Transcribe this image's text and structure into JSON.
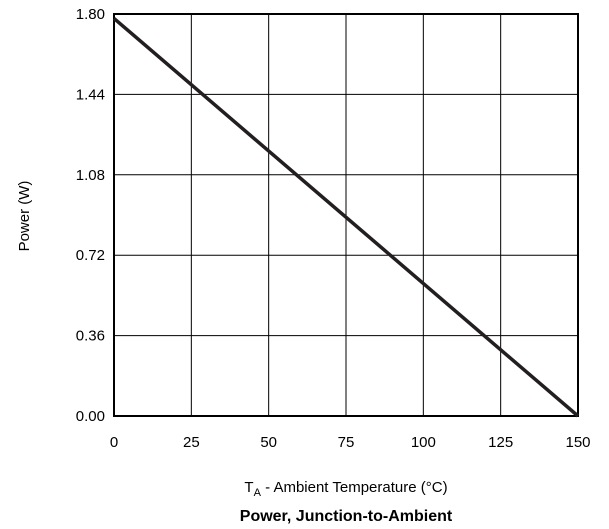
{
  "chart_data": {
    "type": "line",
    "title": "Power, Junction-to-Ambient",
    "xlabel": {
      "main": "T",
      "subscript": "A",
      "rest": " - Ambient Temperature (°C)"
    },
    "ylabel": "Power (W)",
    "xlim": [
      0,
      150
    ],
    "ylim": [
      0,
      1.8
    ],
    "xticks": [
      "0",
      "25",
      "50",
      "75",
      "100",
      "125",
      "150"
    ],
    "yticks": [
      "0.00",
      "0.36",
      "0.72",
      "1.08",
      "1.44",
      "1.80"
    ],
    "grid": true,
    "series": [
      {
        "x": [
          0,
          150
        ],
        "y": [
          1.78,
          0
        ]
      }
    ],
    "colors": {
      "line": "#231f20",
      "grid": "#000000"
    }
  }
}
